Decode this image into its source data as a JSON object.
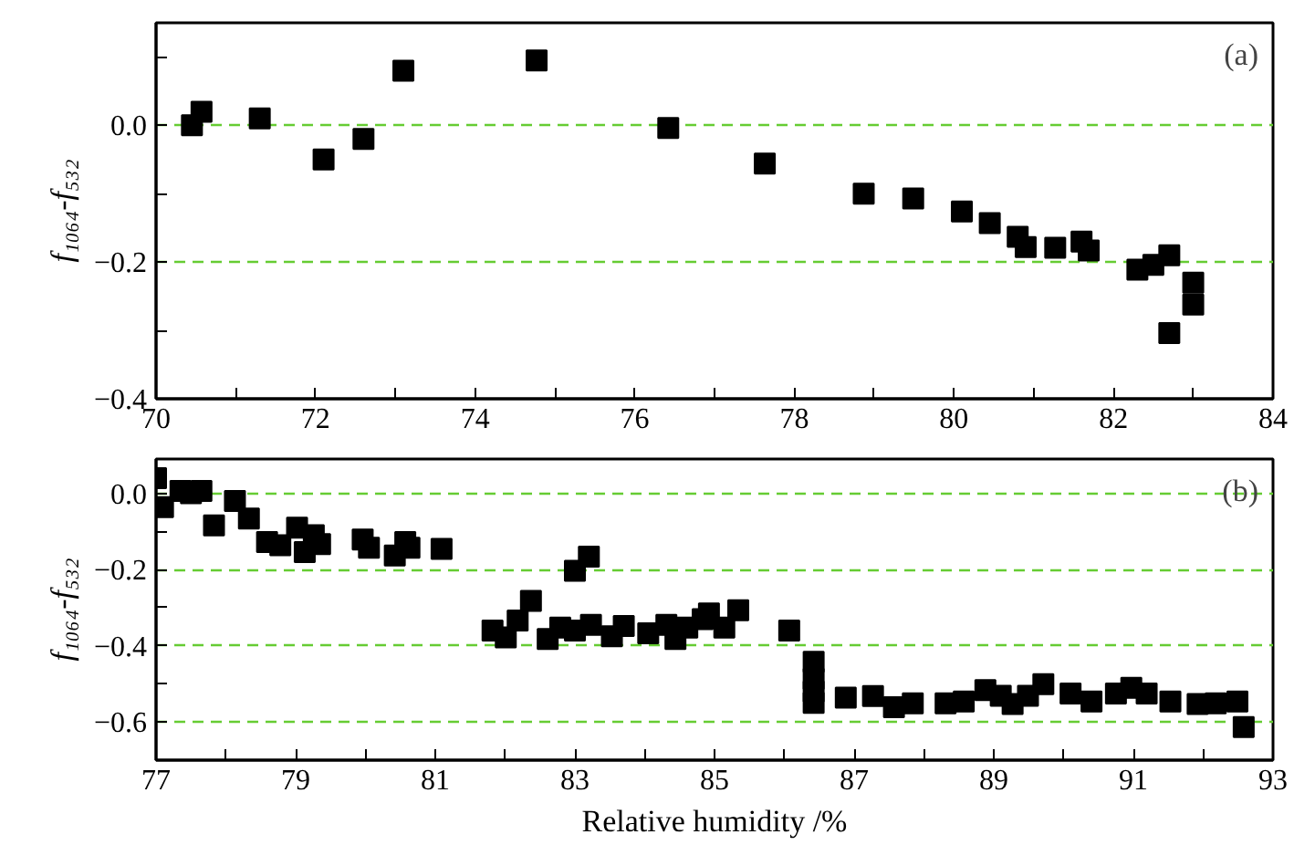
{
  "chart_data": [
    {
      "type": "scatter",
      "ylabel": "f₁₀₆₄-f₅₃₂",
      "annotations": [
        "(a)"
      ],
      "marker": "square",
      "grid": "y",
      "tick_labels": true,
      "xlim": [
        70,
        84
      ],
      "ylim": [
        -0.4,
        0.15
      ],
      "xticks": [
        70,
        {
          "value": 71,
          "label": null
        },
        72,
        {
          "value": 73,
          "label": null
        },
        74,
        {
          "value": 75,
          "label": null
        },
        76,
        {
          "value": 77,
          "label": null
        },
        78,
        {
          "value": 79,
          "label": null
        },
        80,
        {
          "value": 81,
          "label": null
        },
        82,
        {
          "value": 83,
          "label": null
        },
        84
      ],
      "yticks": [
        {
          "value": -0.4,
          "label": "−0.4"
        },
        {
          "value": -0.3,
          "label": null
        },
        {
          "value": -0.2,
          "label": "−0.2"
        },
        {
          "value": -0.1,
          "label": null
        },
        {
          "value": 0,
          "label": "0.0"
        },
        {
          "value": 0.1,
          "label": null
        }
      ],
      "series": [
        {
          "color": "#000000",
          "x": [
            70.45,
            70.5,
            70.57,
            71.3,
            72.1,
            72.6,
            73.1,
            74.77,
            76.42,
            77.63,
            78.87,
            79.49,
            80.1,
            80.45,
            80.8,
            80.9,
            81.27,
            81.6,
            81.69,
            82.3,
            82.5,
            82.7,
            82.7,
            82.9,
            83.0,
            83.0
          ],
          "values": [
            0.0,
            null,
            0.02,
            0.01,
            -0.05,
            -0.02,
            0.08,
            0.095,
            -0.004,
            -0.056,
            -0.1,
            -0.107,
            -0.126,
            -0.143,
            -0.163,
            -0.178,
            -0.179,
            -0.17,
            -0.183,
            -0.211,
            -0.204,
            -0.19,
            -0.304,
            null,
            -0.262,
            -0.23
          ]
        }
      ]
    },
    {
      "type": "scatter",
      "xlabel": "Relative humidity /%",
      "ylabel": "f₁₀₆₄-f₅₃₂",
      "annotations": [
        "(b)"
      ],
      "marker": "square",
      "grid": "y",
      "xlim": [
        77,
        93
      ],
      "ylim": [
        -0.7,
        0.09
      ],
      "xticks": [
        77,
        {
          "value": 78,
          "label": null
        },
        79,
        {
          "value": 80,
          "label": null
        },
        81,
        {
          "value": 82,
          "label": null
        },
        83,
        {
          "value": 84,
          "label": null
        },
        85,
        {
          "value": 86,
          "label": null
        },
        87,
        {
          "value": 88,
          "label": null
        },
        89,
        {
          "value": 90,
          "label": null
        },
        91,
        {
          "value": 92,
          "label": null
        },
        93
      ],
      "yticks": [
        {
          "value": -0.6,
          "label": "−0.6"
        },
        {
          "value": -0.5,
          "label": null
        },
        {
          "value": -0.4,
          "label": "−0.4"
        },
        {
          "value": -0.3,
          "label": null
        },
        {
          "value": -0.2,
          "label": "−0.2"
        },
        {
          "value": -0.1,
          "label": null
        },
        {
          "value": 0,
          "label": "0.0"
        }
      ],
      "series": [
        {
          "color": "#000000",
          "x": [
            77.0,
            77.1,
            77.35,
            77.5,
            77.65,
            77.83,
            78.13,
            78.33,
            78.59,
            78.78,
            79.02,
            79.13,
            79.26,
            79.35,
            79.96,
            80.05,
            80.42,
            80.57,
            80.63,
            81.09,
            81.82,
            82.01,
            82.18,
            82.37,
            82.61,
            82.79,
            83.0,
            83.2,
            83.0,
            83.23,
            83.53,
            83.7,
            84.05,
            84.31,
            84.44,
            84.61,
            84.83,
            84.92,
            85.14,
            85.34,
            86.07,
            86.42,
            86.42,
            86.42,
            86.42,
            86.88,
            87.27,
            87.57,
            87.84,
            88.31,
            88.57,
            88.88,
            89.1,
            89.27,
            89.49,
            89.71,
            90.1,
            90.4,
            90.75,
            90.97,
            91.19,
            91.53,
            91.92,
            92.18,
            92.49,
            92.58
          ],
          "values": [
            0.04,
            -0.036,
            0.006,
            0.0,
            0.006,
            -0.084,
            -0.02,
            -0.066,
            -0.128,
            -0.136,
            -0.09,
            -0.154,
            -0.11,
            -0.133,
            -0.121,
            -0.143,
            -0.163,
            -0.128,
            -0.143,
            -0.146,
            -0.36,
            -0.378,
            -0.334,
            -0.282,
            -0.382,
            -0.352,
            -0.203,
            -0.166,
            -0.36,
            -0.345,
            -0.375,
            -0.348,
            -0.367,
            -0.345,
            -0.382,
            -0.352,
            -0.33,
            -0.315,
            -0.352,
            -0.307,
            -0.36,
            -0.442,
            -0.487,
            -0.52,
            -0.55,
            -0.536,
            -0.532,
            -0.561,
            -0.551,
            -0.551,
            -0.546,
            -0.516,
            -0.531,
            -0.553,
            -0.531,
            -0.501,
            -0.525,
            -0.546,
            -0.525,
            -0.51,
            -0.525,
            -0.546,
            -0.553,
            -0.551,
            -0.546,
            -0.613
          ]
        }
      ]
    }
  ]
}
